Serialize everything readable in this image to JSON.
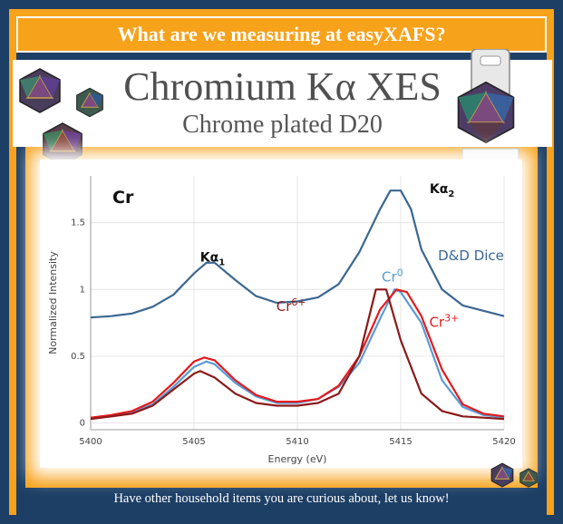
{
  "banner": {
    "text": "What are we measuring at easyXAFS?"
  },
  "title": {
    "main": "Chromium Kα XES",
    "sub": "Chrome plated D20"
  },
  "footer": {
    "text": "Have other household items you are curious about, let us know!"
  },
  "colors": {
    "navy": "#1d3f66",
    "orange": "#f7a21b",
    "dice": "#3b6791",
    "cr0": "#5b9bd5",
    "cr3": "#e41a1c",
    "cr6": "#8b1a1a"
  },
  "icons": [
    "d20-dice-icon",
    "d20-dice-icon",
    "d20-dice-icon",
    "sample-holder-icon",
    "d20-dice-icon",
    "d20-dice-icon"
  ],
  "chart_data": {
    "type": "line",
    "panel_label": "Cr",
    "xlabel": "Energy (eV)",
    "ylabel": "Normalized Intensity",
    "xlim": [
      5400,
      5420
    ],
    "ylim": [
      -0.05,
      1.85
    ],
    "x_ticks": [
      5400,
      5405,
      5410,
      5415,
      5420
    ],
    "y_ticks": [
      0,
      0.5,
      1,
      1.5
    ],
    "grid": true,
    "annotations": [
      {
        "text": "Kα",
        "sub": "1",
        "x": 5405.9,
        "y": 1.21
      },
      {
        "text": "Kα",
        "sub": "2",
        "x": 5417.0,
        "y": 1.72
      }
    ],
    "series": [
      {
        "name": "D&D Dice",
        "label_sup": "",
        "color": "#3b6791",
        "label_x": 5418.4,
        "label_y": 1.22,
        "points": [
          [
            5400,
            0.79
          ],
          [
            5401,
            0.8
          ],
          [
            5402,
            0.82
          ],
          [
            5403,
            0.87
          ],
          [
            5404,
            0.96
          ],
          [
            5405,
            1.12
          ],
          [
            5405.6,
            1.2
          ],
          [
            5406,
            1.2
          ],
          [
            5407,
            1.07
          ],
          [
            5408,
            0.95
          ],
          [
            5409,
            0.9
          ],
          [
            5410,
            0.91
          ],
          [
            5411,
            0.94
          ],
          [
            5412,
            1.04
          ],
          [
            5413,
            1.28
          ],
          [
            5414,
            1.6
          ],
          [
            5414.5,
            1.74
          ],
          [
            5415,
            1.74
          ],
          [
            5415.5,
            1.6
          ],
          [
            5416,
            1.3
          ],
          [
            5417,
            1.0
          ],
          [
            5418,
            0.88
          ],
          [
            5419,
            0.84
          ],
          [
            5420,
            0.8
          ]
        ]
      },
      {
        "name": "Cr",
        "label_sup": "0",
        "color": "#5b9bd5",
        "label_x": 5414.6,
        "label_y": 1.06,
        "points": [
          [
            5400,
            0.04
          ],
          [
            5401,
            0.05
          ],
          [
            5402,
            0.08
          ],
          [
            5403,
            0.14
          ],
          [
            5404,
            0.27
          ],
          [
            5405,
            0.42
          ],
          [
            5405.6,
            0.46
          ],
          [
            5406,
            0.44
          ],
          [
            5407,
            0.3
          ],
          [
            5408,
            0.2
          ],
          [
            5409,
            0.15
          ],
          [
            5410,
            0.15
          ],
          [
            5411,
            0.18
          ],
          [
            5412,
            0.27
          ],
          [
            5413,
            0.45
          ],
          [
            5414,
            0.78
          ],
          [
            5414.7,
            1.0
          ],
          [
            5415,
            0.98
          ],
          [
            5416,
            0.75
          ],
          [
            5417,
            0.32
          ],
          [
            5418,
            0.12
          ],
          [
            5419,
            0.06
          ],
          [
            5420,
            0.04
          ]
        ]
      },
      {
        "name": "Cr",
        "label_sup": "3+",
        "color": "#e41a1c",
        "label_x": 5417.1,
        "label_y": 0.72,
        "points": [
          [
            5400,
            0.04
          ],
          [
            5401,
            0.06
          ],
          [
            5402,
            0.09
          ],
          [
            5403,
            0.16
          ],
          [
            5404,
            0.3
          ],
          [
            5405,
            0.46
          ],
          [
            5405.5,
            0.49
          ],
          [
            5406,
            0.47
          ],
          [
            5407,
            0.32
          ],
          [
            5408,
            0.21
          ],
          [
            5409,
            0.16
          ],
          [
            5410,
            0.16
          ],
          [
            5411,
            0.18
          ],
          [
            5412,
            0.28
          ],
          [
            5413,
            0.5
          ],
          [
            5414,
            0.85
          ],
          [
            5414.8,
            1.0
          ],
          [
            5415.3,
            0.98
          ],
          [
            5416,
            0.8
          ],
          [
            5417,
            0.4
          ],
          [
            5418,
            0.14
          ],
          [
            5419,
            0.07
          ],
          [
            5420,
            0.05
          ]
        ]
      },
      {
        "name": "Cr",
        "label_sup": "6+",
        "color": "#8b1a1a",
        "label_x": 5409.7,
        "label_y": 0.84,
        "points": [
          [
            5400,
            0.03
          ],
          [
            5401,
            0.05
          ],
          [
            5402,
            0.07
          ],
          [
            5403,
            0.13
          ],
          [
            5404,
            0.25
          ],
          [
            5405,
            0.37
          ],
          [
            5405.3,
            0.39
          ],
          [
            5406,
            0.34
          ],
          [
            5407,
            0.22
          ],
          [
            5408,
            0.15
          ],
          [
            5409,
            0.13
          ],
          [
            5410,
            0.13
          ],
          [
            5411,
            0.15
          ],
          [
            5412,
            0.22
          ],
          [
            5413,
            0.5
          ],
          [
            5413.8,
            1.0
          ],
          [
            5414.3,
            1.0
          ],
          [
            5415,
            0.62
          ],
          [
            5416,
            0.22
          ],
          [
            5417,
            0.09
          ],
          [
            5418,
            0.05
          ],
          [
            5419,
            0.04
          ],
          [
            5420,
            0.03
          ]
        ]
      }
    ]
  }
}
